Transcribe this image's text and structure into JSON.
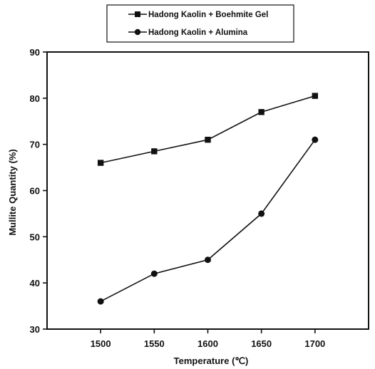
{
  "chart_data": {
    "type": "line",
    "xlabel": "Temperature (℃)",
    "ylabel": "Mullite Quantity (%)",
    "x": [
      1500,
      1550,
      1600,
      1650,
      1700
    ],
    "xlim": [
      1450,
      1750
    ],
    "ylim": [
      30,
      90
    ],
    "x_ticks": [
      "1500",
      "1550",
      "1600",
      "1650",
      "1700"
    ],
    "y_ticks": [
      "30",
      "40",
      "50",
      "60",
      "70",
      "80",
      "90"
    ],
    "grid": false,
    "legend_position": "top-center (above plot)",
    "series": [
      {
        "name": "Hadong Kaolin + Boehmite Gel",
        "marker": "square",
        "values": [
          66,
          68.5,
          71,
          77,
          80.5
        ]
      },
      {
        "name": "Hadong Kaolin + Alumina",
        "marker": "circle",
        "values": [
          36,
          42,
          45,
          55,
          71
        ]
      }
    ]
  }
}
